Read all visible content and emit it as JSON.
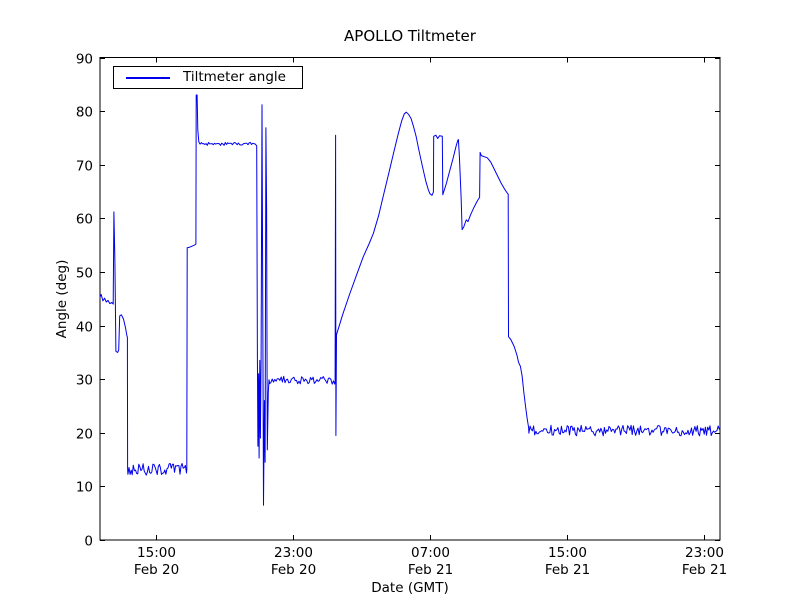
{
  "chart_data": {
    "type": "line",
    "title": "APOLLO Tiltmeter",
    "xlabel": "Date (GMT)",
    "ylabel": "Angle (deg)",
    "x_unit": "hours since Feb 20 00:00 GMT",
    "xlim": [
      11.73,
      47.94
    ],
    "ylim": [
      0,
      90
    ],
    "grid": false,
    "line_color": "#0000ee",
    "axis_color": "#000000",
    "background_color": "#ffffff",
    "tick_length": 5,
    "ytick_values": [
      0,
      10,
      20,
      30,
      40,
      50,
      60,
      70,
      80,
      90
    ],
    "xticks": [
      {
        "value": 15,
        "line1": "15:00",
        "line2": "Feb 20"
      },
      {
        "value": 23,
        "line1": "23:00",
        "line2": "Feb 20"
      },
      {
        "value": 31,
        "line1": "07:00",
        "line2": "Feb 21"
      },
      {
        "value": 39,
        "line1": "15:00",
        "line2": "Feb 21"
      },
      {
        "value": 47,
        "line1": "23:00",
        "line2": "Feb 21"
      }
    ],
    "legend": {
      "label": "Tiltmeter angle",
      "position": "upper left"
    },
    "series": [
      {
        "name": "Tiltmeter angle",
        "segments": [
          {
            "type": "points",
            "pts": [
              [
                11.73,
                45.3
              ],
              [
                11.8,
                45.8
              ],
              [
                11.9,
                44.6
              ],
              [
                12.0,
                45.1
              ],
              [
                12.1,
                44.4
              ],
              [
                12.2,
                44.7
              ],
              [
                12.3,
                44.1
              ],
              [
                12.42,
                44.3
              ],
              [
                12.5,
                44.0
              ],
              [
                12.54,
                61.2
              ],
              [
                12.6,
                52.0
              ],
              [
                12.66,
                35.2
              ],
              [
                12.76,
                35.0
              ],
              [
                12.82,
                35.4
              ],
              [
                12.88,
                41.8
              ],
              [
                12.98,
                42.0
              ],
              [
                13.1,
                41.2
              ],
              [
                13.22,
                39.6
              ],
              [
                13.3,
                38.1
              ],
              [
                13.33,
                37.8
              ],
              [
                13.34,
                13.4
              ]
            ]
          },
          {
            "type": "noise",
            "t0": 13.36,
            "t1": 16.78,
            "mean": 13.2,
            "amp": 1.2,
            "n": 55
          },
          {
            "type": "points",
            "pts": [
              [
                16.8,
                13.2
              ],
              [
                16.82,
                54.5
              ],
              [
                16.95,
                54.6
              ],
              [
                17.1,
                54.8
              ],
              [
                17.25,
                55.0
              ],
              [
                17.33,
                55.2
              ],
              [
                17.35,
                83.0
              ],
              [
                17.4,
                83.0
              ],
              [
                17.44,
                76.5
              ],
              [
                17.5,
                74.3
              ],
              [
                17.56,
                73.9
              ]
            ]
          },
          {
            "type": "noise",
            "t0": 17.58,
            "t1": 20.86,
            "mean": 73.85,
            "amp": 0.3,
            "n": 48
          },
          {
            "type": "points",
            "pts": [
              [
                20.88,
                73.5
              ],
              [
                20.92,
                34.0
              ],
              [
                20.95,
                17.5
              ],
              [
                20.99,
                31.0
              ],
              [
                21.02,
                15.3
              ],
              [
                21.06,
                33.5
              ],
              [
                21.1,
                19.0
              ],
              [
                21.14,
                34.0
              ],
              [
                21.19,
                81.2
              ],
              [
                21.24,
                42.0
              ],
              [
                21.28,
                6.5
              ],
              [
                21.33,
                26.0
              ],
              [
                21.37,
                14.5
              ],
              [
                21.42,
                76.9
              ],
              [
                21.46,
                62.0
              ],
              [
                21.5,
                16.8
              ],
              [
                21.56,
                27.5
              ],
              [
                21.6,
                29.9
              ]
            ]
          },
          {
            "type": "noise",
            "t0": 21.64,
            "t1": 25.44,
            "mean": 29.8,
            "amp": 0.75,
            "n": 52
          },
          {
            "type": "points",
            "pts": [
              [
                25.46,
                29.6
              ],
              [
                25.49,
                75.5
              ],
              [
                25.51,
                19.5
              ],
              [
                25.54,
                38.3
              ],
              [
                25.9,
                42.0
              ],
              [
                26.3,
                45.8
              ],
              [
                26.7,
                49.3
              ],
              [
                27.1,
                52.8
              ],
              [
                27.45,
                55.3
              ],
              [
                27.7,
                57.2
              ],
              [
                28.0,
                60.5
              ],
              [
                28.3,
                64.5
              ],
              [
                28.6,
                68.5
              ],
              [
                28.9,
                72.5
              ],
              [
                29.15,
                75.8
              ],
              [
                29.35,
                78.2
              ],
              [
                29.5,
                79.5
              ],
              [
                29.62,
                79.8
              ],
              [
                29.75,
                79.4
              ],
              [
                29.9,
                78.6
              ],
              [
                30.05,
                77.0
              ],
              [
                30.2,
                75.2
              ],
              [
                30.35,
                72.8
              ],
              [
                30.55,
                69.9
              ],
              [
                30.75,
                67.0
              ],
              [
                30.9,
                65.4
              ],
              [
                31.0,
                64.6
              ],
              [
                31.12,
                64.3
              ],
              [
                31.2,
                64.9
              ],
              [
                31.22,
                75.3
              ],
              [
                31.35,
                75.5
              ],
              [
                31.45,
                74.9
              ],
              [
                31.56,
                75.4
              ],
              [
                31.72,
                75.3
              ],
              [
                31.75,
                64.4
              ],
              [
                31.95,
                66.4
              ],
              [
                32.15,
                68.8
              ],
              [
                32.35,
                71.2
              ],
              [
                32.52,
                73.4
              ],
              [
                32.62,
                74.5
              ],
              [
                32.66,
                74.7
              ],
              [
                32.72,
                71.5
              ],
              [
                32.82,
                64.0
              ],
              [
                32.88,
                57.9
              ],
              [
                32.98,
                58.4
              ],
              [
                33.12,
                59.7
              ],
              [
                33.22,
                59.4
              ],
              [
                33.38,
                60.7
              ],
              [
                33.58,
                62.1
              ],
              [
                33.78,
                63.3
              ],
              [
                33.9,
                63.9
              ],
              [
                33.93,
                72.3
              ],
              [
                34.0,
                71.7
              ],
              [
                34.35,
                71.3
              ],
              [
                34.55,
                70.5
              ],
              [
                34.75,
                69.2
              ],
              [
                34.95,
                67.9
              ],
              [
                35.15,
                66.6
              ],
              [
                35.35,
                65.5
              ],
              [
                35.52,
                64.7
              ],
              [
                35.57,
                64.5
              ],
              [
                35.59,
                37.9
              ],
              [
                35.72,
                37.4
              ],
              [
                35.92,
                36.1
              ],
              [
                36.08,
                34.5
              ],
              [
                36.18,
                33.1
              ],
              [
                36.28,
                32.4
              ],
              [
                36.38,
                30.6
              ],
              [
                36.48,
                27.6
              ],
              [
                36.58,
                25.0
              ],
              [
                36.68,
                22.6
              ],
              [
                36.76,
                21.0
              ]
            ]
          },
          {
            "type": "noise",
            "t0": 36.78,
            "t1": 47.9,
            "mean": 20.4,
            "amp": 1.0,
            "n": 165
          }
        ]
      }
    ]
  }
}
